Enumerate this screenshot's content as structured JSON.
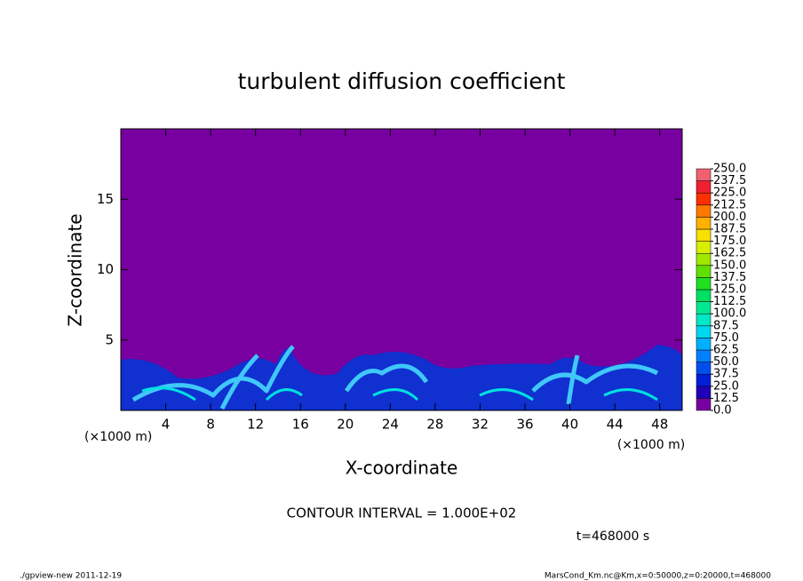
{
  "chart_data": {
    "type": "contour",
    "title": "turbulent diffusion coefficient",
    "x_label": "X-coordinate",
    "y_label": "Z-coordinate",
    "x_unit": "(×1000 m)",
    "x_unit_right": "(×1000 m)",
    "note": "CONTOUR INTERVAL = 1.000E+02",
    "time_label": "t=468000 s",
    "footer_left": "./gpview-new   2011-12-19",
    "footer_right": "MarsCond_Km.nc@Km,x=0:50000,z=0:20000,t=468000",
    "xlim": [
      0,
      50
    ],
    "xticks": [
      4,
      8,
      12,
      16,
      20,
      24,
      28,
      32,
      36,
      40,
      44,
      48
    ],
    "ylim": [
      0,
      20
    ],
    "yticks": [
      5,
      10,
      15
    ],
    "levels": [
      {
        "value": 0,
        "label": "0.0"
      },
      {
        "value": 12.5,
        "label": "12.5"
      },
      {
        "value": 25,
        "label": "25.0"
      },
      {
        "value": 37.5,
        "label": "37.5"
      },
      {
        "value": 50,
        "label": "50.0"
      },
      {
        "value": 62.5,
        "label": "62.5"
      },
      {
        "value": 75,
        "label": "75.0"
      },
      {
        "value": 87.5,
        "label": "87.5"
      },
      {
        "value": 100,
        "label": "100.0"
      },
      {
        "value": 112.5,
        "label": "112.5"
      },
      {
        "value": 125,
        "label": "125.0"
      },
      {
        "value": 137.5,
        "label": "137.5"
      },
      {
        "value": 150,
        "label": "150.0"
      },
      {
        "value": 162.5,
        "label": "162.5"
      },
      {
        "value": 175,
        "label": "175.0"
      },
      {
        "value": 187.5,
        "label": "187.5"
      },
      {
        "value": 200,
        "label": "200.0"
      },
      {
        "value": 212.5,
        "label": "212.5"
      },
      {
        "value": 225,
        "label": "225.0"
      },
      {
        "value": 237.5,
        "label": "237.5"
      },
      {
        "value": 250,
        "label": "250.0"
      }
    ],
    "colors": [
      "#7800a0",
      "#2000b8",
      "#0020d8",
      "#0050f0",
      "#0080ff",
      "#00b0ff",
      "#00d8f0",
      "#00e8c8",
      "#00e890",
      "#00e060",
      "#20e020",
      "#60e000",
      "#a0e800",
      "#d8f000",
      "#f8e000",
      "#ffb000",
      "#ff7800",
      "#ff3000",
      "#f02030",
      "#f06070"
    ]
  }
}
